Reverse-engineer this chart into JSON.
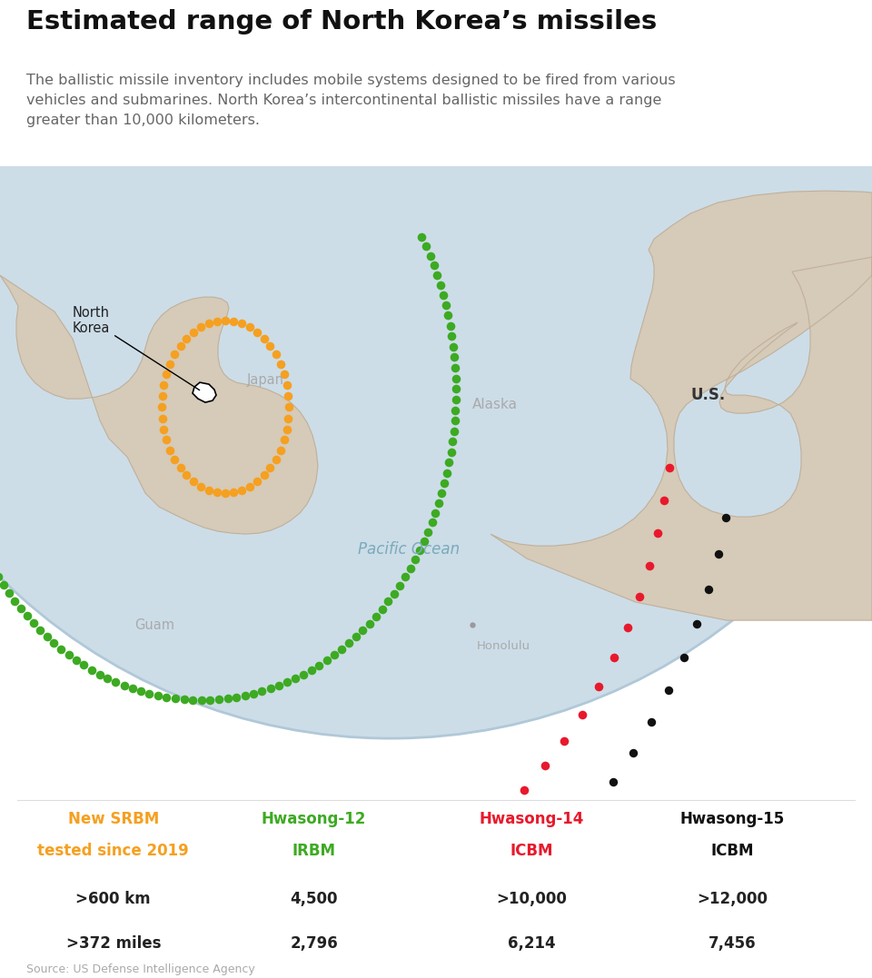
{
  "title": "Estimated range of North Korea’s missiles",
  "subtitle": "The ballistic missile inventory includes mobile systems designed to be fired from various\nvehicles and submarines. North Korea’s intercontinental ballistic missiles have a range\ngreater than 10,000 kilometers.",
  "source": "Source: US Defense Intelligence Agency",
  "background_color": "#ffffff",
  "map_ocean_color": "#ccdde8",
  "map_land_color": "#d6cab8",
  "globe_edge_color": "#b0c8d8",
  "missiles": [
    {
      "name_line1": "New SRBM",
      "name_line2": "tested since 2019",
      "type": "",
      "color": "#f5a020",
      "km": ">600 km",
      "miles": ">372 miles"
    },
    {
      "name_line1": "Hwasong-12",
      "name_line2": "",
      "type": "IRBM",
      "color": "#3daa22",
      "km": "4,500",
      "miles": "2,796"
    },
    {
      "name_line1": "Hwasong-14",
      "name_line2": "",
      "type": "ICBM",
      "color": "#e8192c",
      "km": ">10,000",
      "miles": "6,214"
    },
    {
      "name_line1": "Hwasong-15",
      "name_line2": "",
      "type": "ICBM",
      "color": "#111111",
      "km": ">12,000",
      "miles": "7,456"
    }
  ],
  "legend_cols": [
    0.13,
    0.36,
    0.61,
    0.84
  ]
}
